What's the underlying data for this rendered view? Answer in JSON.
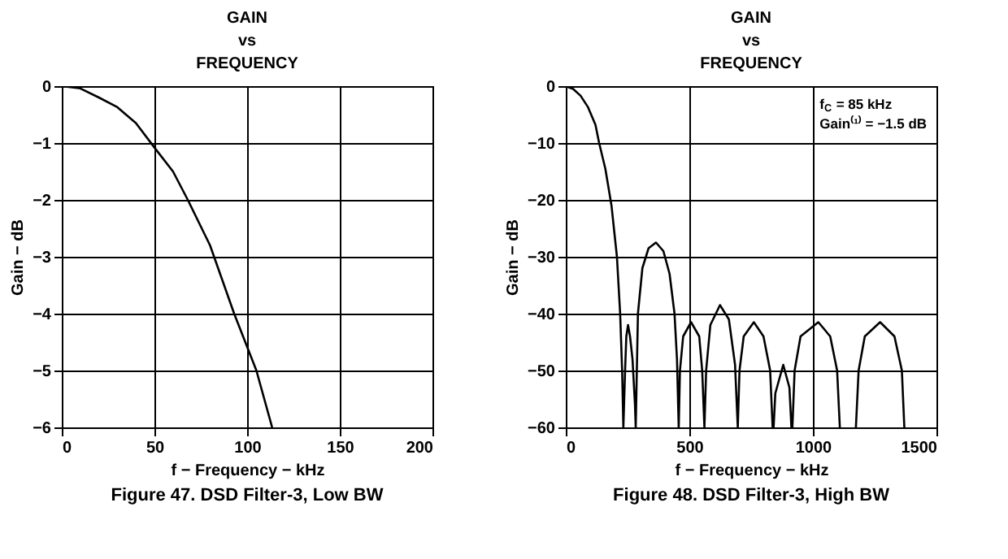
{
  "chart_data": [
    {
      "type": "line",
      "title": "GAIN\nvs\nFREQUENCY",
      "xlabel": "f − Frequency − kHz",
      "ylabel": "Gain − dB",
      "annotations": [
        "Figure 47. DSD Filter-3, Low BW"
      ],
      "x": [
        0,
        10,
        20,
        30,
        40,
        50,
        60,
        68,
        80,
        93,
        105,
        113.5
      ],
      "series": [
        {
          "color": "#000000",
          "values": [
            0,
            -0.04,
            -0.2,
            -0.37,
            -0.65,
            -1.08,
            -1.5,
            -2.0,
            -2.8,
            -4.0,
            -5.0,
            -6.0
          ]
        }
      ],
      "xlim": [
        0,
        200
      ],
      "xticks": [
        0,
        50,
        100,
        150,
        200
      ],
      "ylim": [
        -6,
        0
      ],
      "yticks": [
        -6,
        -5,
        -4,
        -3,
        -2,
        -1,
        0
      ],
      "grid": true,
      "legend": false,
      "marker": "none",
      "line_style": "solid"
    },
    {
      "type": "line",
      "title": "GAIN\nvs\nFREQUENCY",
      "xlabel": "f − Frequency − kHz",
      "ylabel": "Gain − dB",
      "annotations": [
        "f$_{C}$ = 85 kHz",
        "Gain⁽¹⁾ = −1.5 dB",
        "Figure 48. DSD Filter-3, High BW"
      ],
      "x": [
        0,
        30,
        60,
        90,
        120,
        135,
        160,
        185,
        207,
        220,
        228,
        233,
        240,
        245,
        252,
        260,
        270,
        280,
        283,
        292,
        310,
        335,
        365,
        395,
        420,
        440,
        450,
        457,
        462,
        475,
        507,
        540,
        552,
        561,
        568,
        585,
        624,
        660,
        685,
        696,
        703,
        720,
        761,
        800,
        827,
        837,
        841,
        848,
        880,
        905,
        913,
        917,
        926,
        950,
        1022,
        1070,
        1098,
        1109,
        1140,
        1174,
        1185,
        1210,
        1272,
        1330,
        1360,
        1370
      ],
      "series": [
        {
          "color": "#000000",
          "values": [
            0,
            -0.5,
            -1.7,
            -3.7,
            -6.8,
            -10,
            -14.5,
            -21,
            -30,
            -40,
            -50,
            -60,
            -50,
            -44,
            -42,
            -44,
            -48,
            -56,
            -60,
            -40,
            -32,
            -28.5,
            -27.5,
            -29,
            -33,
            -40,
            -48,
            -60,
            -50,
            -44,
            -41.5,
            -44,
            -50,
            -60,
            -50,
            -42,
            -38.5,
            -41,
            -49,
            -60,
            -50,
            -44,
            -41.5,
            -44,
            -50,
            -60,
            -60,
            -54,
            -49,
            -53,
            -60,
            -60,
            -50,
            -44,
            -41.5,
            -44,
            -50,
            -60,
            null,
            -60,
            -50,
            -44,
            -41.5,
            -44,
            -50,
            -60
          ]
        }
      ],
      "xlim": [
        0,
        1500
      ],
      "xticks": [
        0,
        500,
        {
          "value": 1000,
          "label": "1000"
        },
        {
          "value": 1500,
          "label": "1500"
        }
      ],
      "ylim": [
        -60,
        0
      ],
      "yticks": [
        -60,
        -50,
        -40,
        -30,
        -20,
        -10,
        0
      ],
      "grid": true,
      "legend": false,
      "marker": "none",
      "line_style": "solid"
    }
  ]
}
